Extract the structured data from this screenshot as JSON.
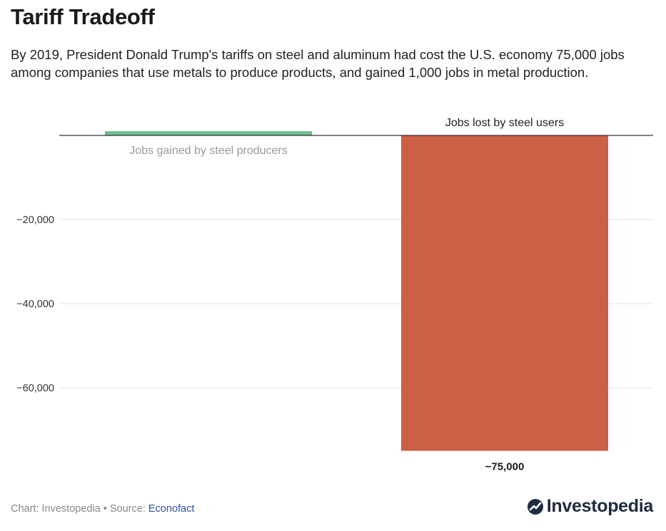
{
  "title": "Tariff Tradeoff",
  "subtitle": "By 2019, President Donald Trump's tariffs on steel and aluminum had cost the U.S. economy 75,000 jobs among companies that use metals to produce products, and gained 1,000 jobs in metal production.",
  "footer": {
    "chart_credit": "Chart: Investopedia",
    "separator": " • ",
    "source_prefix": "Source: ",
    "source_name": "Econofact"
  },
  "logo": {
    "text": "Investopedia",
    "icon": "investopedia-logo-icon"
  },
  "colors": {
    "gain": "#6cc08f",
    "loss": "#cc5f46",
    "gridline": "#e3e3e3",
    "baseline": "#333333"
  },
  "chart_data": {
    "type": "bar",
    "categories": [
      "Jobs gained by steel producers",
      "Jobs lost by steel users"
    ],
    "values": [
      1000,
      -75000
    ],
    "data_labels": [
      "",
      "−75,000"
    ],
    "y_ticks": [
      -20000,
      -40000,
      -60000
    ],
    "y_tick_labels": [
      "−20,000",
      "−40,000",
      "−60,000"
    ],
    "ylim": [
      -80000,
      0
    ],
    "grid": true,
    "title": "",
    "xlabel": "",
    "ylabel": ""
  }
}
